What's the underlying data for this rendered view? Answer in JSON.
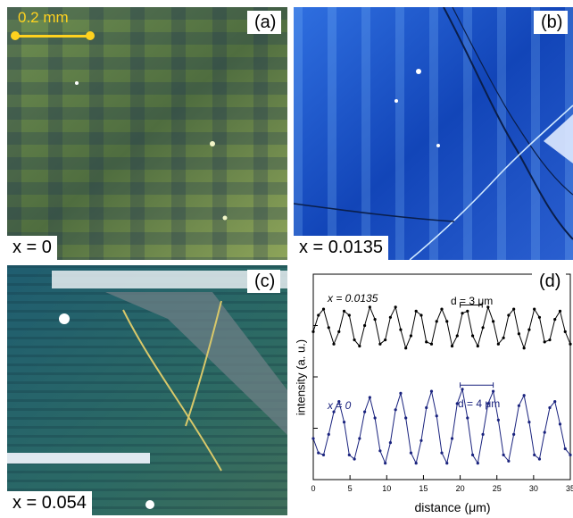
{
  "panels": {
    "a": {
      "label": "(a)",
      "composition": "x = 0",
      "scalebar": "0.2 mm"
    },
    "b": {
      "label": "(b)",
      "composition": "x = 0.0135"
    },
    "c": {
      "label": "(c)",
      "composition": "x = 0.054"
    },
    "d": {
      "label": "(d)"
    }
  },
  "chart_data": {
    "type": "line",
    "xlabel": "distance (μm)",
    "ylabel": "intensity (a. u.)",
    "xlim": [
      0,
      35
    ],
    "x_ticks": [
      "0",
      "5",
      "10",
      "15",
      "20",
      "25",
      "30",
      "35"
    ],
    "grid": false,
    "series": [
      {
        "name": "x = 0.0135",
        "color": "#000000",
        "period_um": 3,
        "annotation": "d = 3 μm",
        "x": [
          0,
          0.7,
          1.4,
          2.1,
          2.8,
          3.5,
          4.2,
          4.9,
          5.6,
          6.3,
          7,
          7.7,
          8.4,
          9.1,
          9.8,
          10.5,
          11.2,
          11.9,
          12.6,
          13.3,
          14,
          14.7,
          15.4,
          16.1,
          16.8,
          17.5,
          18.2,
          18.9,
          19.6,
          20.3,
          21,
          21.7,
          22.4,
          23.1,
          23.8,
          24.5,
          25.2,
          25.9,
          26.6,
          27.3,
          28,
          28.7,
          29.4,
          30.1,
          30.8,
          31.5,
          32.2,
          32.9,
          33.6,
          34.3,
          35
        ],
        "y": [
          0.72,
          0.8,
          0.83,
          0.74,
          0.66,
          0.72,
          0.82,
          0.8,
          0.68,
          0.65,
          0.75,
          0.84,
          0.78,
          0.66,
          0.68,
          0.79,
          0.84,
          0.73,
          0.64,
          0.7,
          0.82,
          0.8,
          0.67,
          0.66,
          0.77,
          0.83,
          0.77,
          0.65,
          0.7,
          0.81,
          0.82,
          0.7,
          0.65,
          0.74,
          0.84,
          0.77,
          0.66,
          0.69,
          0.8,
          0.83,
          0.71,
          0.64,
          0.73,
          0.83,
          0.79,
          0.67,
          0.68,
          0.78,
          0.82,
          0.72,
          0.66
        ]
      },
      {
        "name": "x = 0",
        "color": "#1a237e",
        "period_um": 4,
        "annotation": "d = 4 μm",
        "x": [
          0,
          0.7,
          1.4,
          2.1,
          2.8,
          3.5,
          4.2,
          4.9,
          5.6,
          6.3,
          7,
          7.7,
          8.4,
          9.1,
          9.8,
          10.5,
          11.2,
          11.9,
          12.6,
          13.3,
          14,
          14.7,
          15.4,
          16.1,
          16.8,
          17.5,
          18.2,
          18.9,
          19.6,
          20.3,
          21,
          21.7,
          22.4,
          23.1,
          23.8,
          24.5,
          25.2,
          25.9,
          26.6,
          27.3,
          28,
          28.7,
          29.4,
          30.1,
          30.8,
          31.5,
          32.2,
          32.9,
          33.6,
          34.3,
          35
        ],
        "y": [
          0.2,
          0.13,
          0.12,
          0.22,
          0.33,
          0.38,
          0.28,
          0.12,
          0.1,
          0.2,
          0.33,
          0.4,
          0.3,
          0.14,
          0.08,
          0.18,
          0.34,
          0.42,
          0.3,
          0.13,
          0.08,
          0.19,
          0.35,
          0.43,
          0.31,
          0.13,
          0.08,
          0.2,
          0.37,
          0.44,
          0.3,
          0.12,
          0.08,
          0.22,
          0.37,
          0.43,
          0.29,
          0.12,
          0.09,
          0.22,
          0.36,
          0.41,
          0.28,
          0.12,
          0.1,
          0.23,
          0.35,
          0.38,
          0.27,
          0.15,
          0.12
        ]
      }
    ]
  }
}
